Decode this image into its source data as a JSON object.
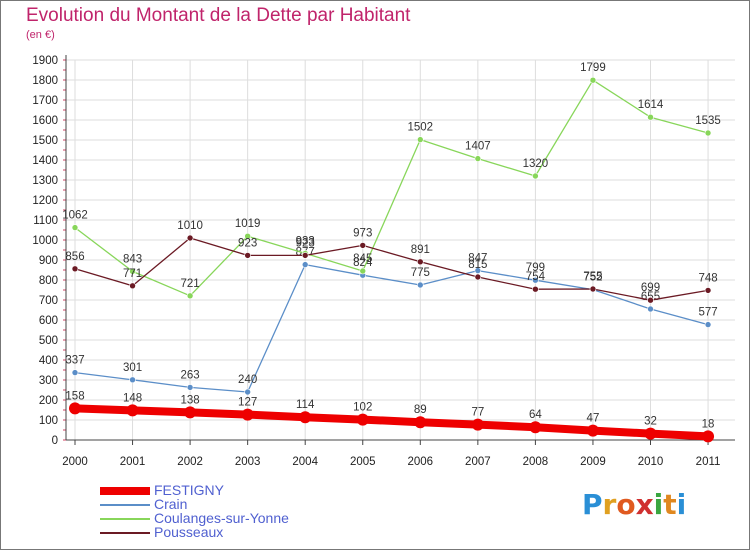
{
  "title": "Evolution du Montant de la Dette par Habitant",
  "subtitle": "(en €)",
  "logo": {
    "letters": [
      "P",
      "r",
      "o",
      "x",
      "i",
      "t",
      "i"
    ],
    "colors": [
      "#2a8fd6",
      "#e0a020",
      "#e05a20",
      "#d03030",
      "#3aa640",
      "#e08820",
      "#2a8fd6"
    ]
  },
  "chart_data": {
    "type": "line",
    "x": [
      "2000",
      "2001",
      "2002",
      "2003",
      "2004",
      "2005",
      "2006",
      "2007",
      "2008",
      "2009",
      "2010",
      "2011"
    ],
    "ylim": [
      0,
      1900
    ],
    "yticks": [
      0,
      100,
      200,
      300,
      400,
      500,
      600,
      700,
      800,
      900,
      1000,
      1100,
      1200,
      1300,
      1400,
      1500,
      1600,
      1700,
      1800,
      1900
    ],
    "grid": true,
    "legend_position": "bottom",
    "series": [
      {
        "name": "FESTIGNY",
        "color": "#ee0000",
        "values": [
          158,
          148,
          138,
          127,
          114,
          102,
          89,
          77,
          64,
          47,
          32,
          18
        ]
      },
      {
        "name": "Crain",
        "color": "#5b8ec8",
        "values": [
          337,
          301,
          263,
          240,
          877,
          824,
          775,
          847,
          799,
          752,
          655,
          577
        ]
      },
      {
        "name": "Coulanges-sur-Yonne",
        "color": "#88d65a",
        "values": [
          1062,
          843,
          721,
          1019,
          933,
          845,
          1502,
          1407,
          1320,
          1799,
          1614,
          1535
        ]
      },
      {
        "name": "Pousseaux",
        "color": "#6b1a24",
        "values": [
          856,
          771,
          1010,
          923,
          923,
          973,
          891,
          815,
          754,
          755,
          699,
          748
        ]
      }
    ]
  }
}
